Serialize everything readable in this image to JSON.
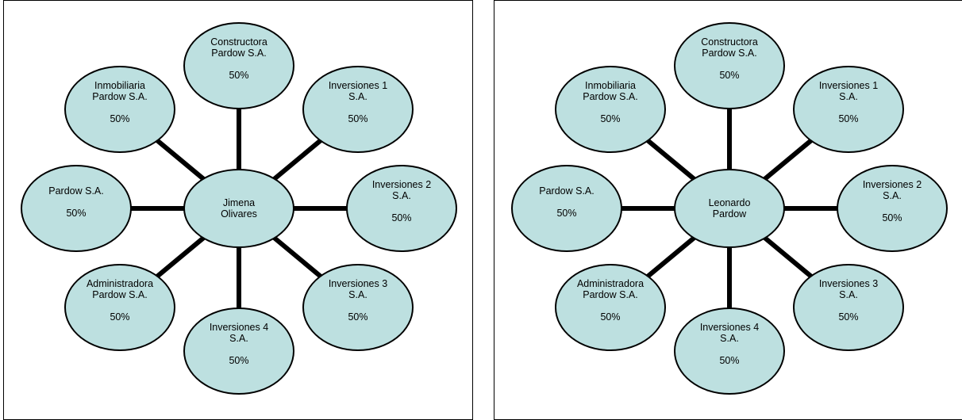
{
  "diagrams": [
    {
      "center": "Jimena\nOlivares",
      "nodes": [
        {
          "name": "Constructora\nPardow S.A.",
          "pct": "50%"
        },
        {
          "name": "Inversiones 1\nS.A.",
          "pct": "50%"
        },
        {
          "name": "Inversiones 2\nS.A.",
          "pct": "50%"
        },
        {
          "name": "Inversiones 3\nS.A.",
          "pct": "50%"
        },
        {
          "name": "Inversiones 4\nS.A.",
          "pct": "50%"
        },
        {
          "name": "Administradora\nPardow S.A.",
          "pct": "50%"
        },
        {
          "name": "Pardow S.A.",
          "pct": "50%"
        },
        {
          "name": "Inmobiliaria\nPardow S.A.",
          "pct": "50%"
        }
      ]
    },
    {
      "center": "Leonardo\nPardow",
      "nodes": [
        {
          "name": "Constructora\nPardow S.A.",
          "pct": "50%"
        },
        {
          "name": "Inversiones 1\nS.A.",
          "pct": "50%"
        },
        {
          "name": "Inversiones 2\nS.A.",
          "pct": "50%"
        },
        {
          "name": "Inversiones 3\nS.A.",
          "pct": "50%"
        },
        {
          "name": "Inversiones 4\nS.A.",
          "pct": "50%"
        },
        {
          "name": "Administradora\nPardow S.A.",
          "pct": "50%"
        },
        {
          "name": "Pardow S.A.",
          "pct": "50%"
        },
        {
          "name": "Inmobiliaria\nPardow S.A.",
          "pct": "50%"
        }
      ]
    }
  ]
}
